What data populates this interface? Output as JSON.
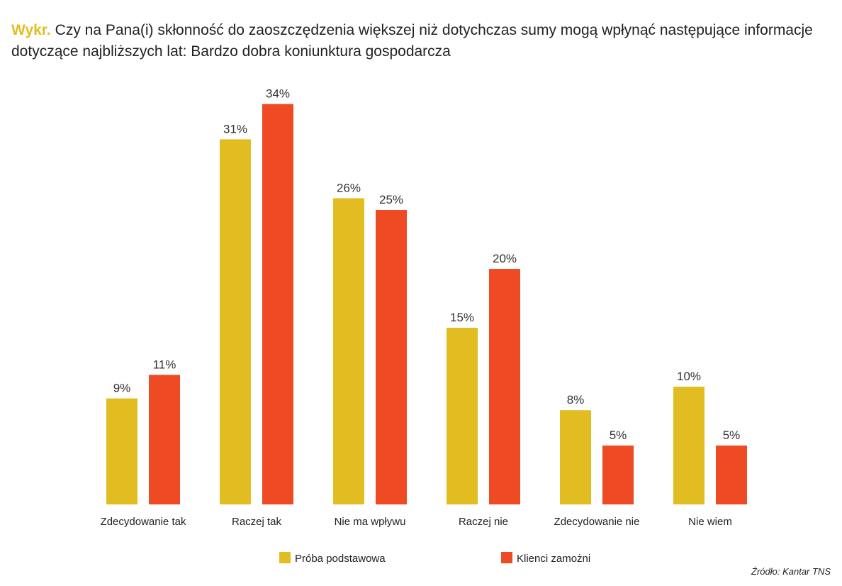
{
  "title": {
    "prefix": "Wykr.",
    "text": "Czy na Pana(i) skłonność do zaoszczędzenia większej niż dotychczas sumy mogą wpłynąć następujące informacje dotyczące najbliższych lat: Bardzo dobra koniunktura gospodarcza"
  },
  "source": "Źródło: Kantar TNS",
  "colors": {
    "series1": "#e2bd22",
    "series2": "#ee4a23"
  },
  "chart_data": {
    "type": "bar",
    "categories": [
      "Zdecydowanie tak",
      "Raczej tak",
      "Nie ma wpływu",
      "Raczej nie",
      "Zdecydowanie nie",
      "Nie wiem"
    ],
    "series": [
      {
        "name": "Próba podstawowa",
        "values": [
          9,
          31,
          26,
          15,
          8,
          10
        ],
        "labels": [
          "9%",
          "31%",
          "26%",
          "15%",
          "8%",
          "10%"
        ]
      },
      {
        "name": "Klienci zamożni",
        "values": [
          11,
          34,
          25,
          20,
          5,
          5
        ],
        "labels": [
          "11%",
          "34%",
          "25%",
          "20%",
          "5%",
          "5%"
        ]
      }
    ],
    "ylim": [
      0,
      35
    ],
    "grid": false,
    "legend": "bottom"
  }
}
